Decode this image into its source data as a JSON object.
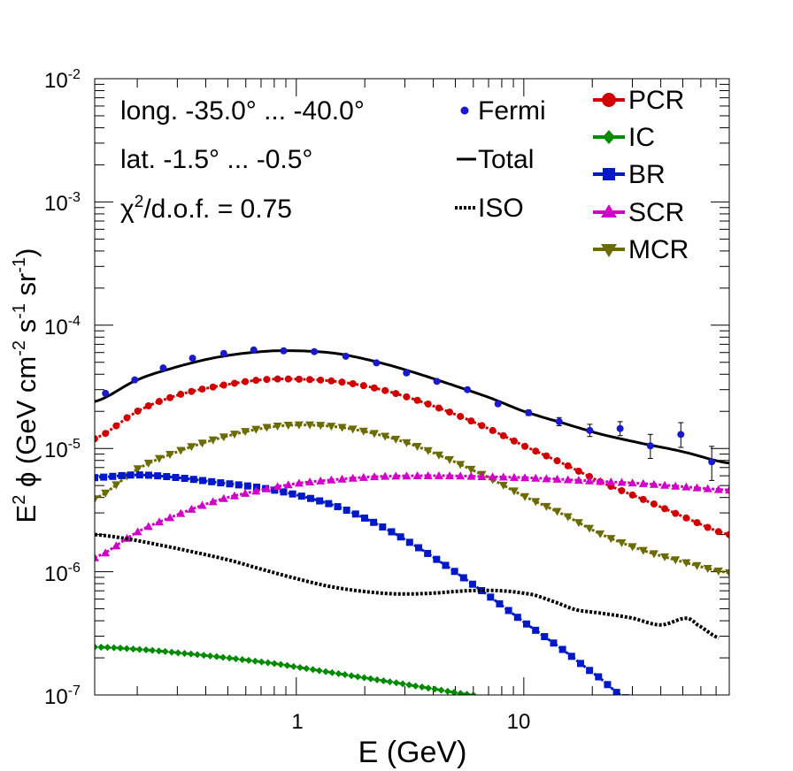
{
  "chart_data": {
    "type": "line",
    "x_scale": "log",
    "y_scale": "log",
    "xlim": [
      0.13,
      80
    ],
    "ylim": [
      1e-07,
      0.01
    ],
    "xlabel": "E (GeV)",
    "ylabel": "E² ϕ (GeV cm⁻² s⁻¹ sr⁻¹)",
    "ylabel_parts": {
      "base": "E",
      "sq": "2",
      "phi": " ϕ (GeV cm",
      "m2": "-2",
      "s": " s",
      "m1a": "-1",
      "sr": " sr",
      "m1b": "-1",
      "close": ")"
    },
    "x_tick_labels": [
      {
        "value": 1,
        "label": "1"
      },
      {
        "value": 10,
        "label": "10"
      }
    ],
    "y_tick_labels": [
      {
        "value": 1e-07,
        "base": "10",
        "exp": "-7"
      },
      {
        "value": 1e-06,
        "base": "10",
        "exp": "-6"
      },
      {
        "value": 1e-05,
        "base": "10",
        "exp": "-5"
      },
      {
        "value": 0.0001,
        "base": "10",
        "exp": "-4"
      },
      {
        "value": 0.001,
        "base": "10",
        "exp": "-3"
      },
      {
        "value": 0.01,
        "base": "10",
        "exp": "-2"
      }
    ],
    "annotations": {
      "longitude": "long. -35.0° ... -40.0°",
      "latitude": "lat. -1.5° ... -0.5°",
      "chi_prefix": "χ",
      "chi_exp": "2",
      "chi_suffix": "/d.o.f. = 0.75"
    },
    "legend_left": [
      {
        "name": "Fermi",
        "style": "points"
      },
      {
        "name": "Total",
        "style": "solid"
      },
      {
        "name": "ISO",
        "style": "dotted"
      }
    ],
    "legend_right": [
      {
        "name": "PCR",
        "color": "#d00000",
        "marker": "circle"
      },
      {
        "name": "IC",
        "color": "#008a00",
        "marker": "diamond"
      },
      {
        "name": "BR",
        "color": "#0018c8",
        "marker": "square"
      },
      {
        "name": "SCR",
        "color": "#d000c8",
        "marker": "triangle-up"
      },
      {
        "name": "MCR",
        "color": "#6b6b00",
        "marker": "triangle-down"
      }
    ],
    "fermi_points": {
      "color": "#1a1acc",
      "x": [
        0.145,
        0.195,
        0.26,
        0.35,
        0.48,
        0.65,
        0.88,
        1.2,
        1.65,
        2.25,
        3.05,
        4.15,
        5.65,
        7.7,
        10.5,
        14.3,
        19.5,
        26.5,
        36,
        49,
        67
      ],
      "y": [
        2.8e-05,
        3.6e-05,
        4.5e-05,
        5.4e-05,
        5.9e-05,
        6.3e-05,
        6.2e-05,
        6.1e-05,
        5.6e-05,
        4.95e-05,
        4.1e-05,
        3.5e-05,
        3e-05,
        2.3e-05,
        1.95e-05,
        1.65e-05,
        1.4e-05,
        1.45e-05,
        1.05e-05,
        1.3e-05,
        7.8e-06
      ],
      "err_lo": [
        0,
        0,
        0,
        0,
        0,
        0,
        0,
        0,
        0,
        0,
        0,
        0,
        0,
        0,
        1e-06,
        1.2e-06,
        1.5e-06,
        1.8e-06,
        2.2e-06,
        2.8e-06,
        2.3e-06
      ],
      "err_hi": [
        0,
        0,
        0,
        0,
        0,
        0,
        0,
        0,
        0,
        0,
        0,
        0,
        0,
        0,
        1e-06,
        1.3e-06,
        1.7e-06,
        2e-06,
        2.5e-06,
        3.2e-06,
        2.6e-06
      ]
    },
    "series": [
      {
        "name": "Total",
        "color": "#000000",
        "style": "solid",
        "x": [
          0.13,
          0.2,
          0.3,
          0.45,
          0.7,
          1.0,
          1.5,
          2.2,
          3.2,
          4.8,
          7.0,
          10,
          15,
          22,
          33,
          50,
          80
        ],
        "y": [
          2.4e-05,
          3.6e-05,
          4.6e-05,
          5.5e-05,
          6.1e-05,
          6.2e-05,
          5.9e-05,
          5.1e-05,
          4.2e-05,
          3.3e-05,
          2.6e-05,
          2e-05,
          1.6e-05,
          1.3e-05,
          1.1e-05,
          9.4e-06,
          7.6e-06
        ]
      },
      {
        "name": "PCR",
        "color": "#d00000",
        "style": "markers",
        "marker": "circle",
        "x": [
          0.13,
          0.2,
          0.3,
          0.45,
          0.7,
          1.0,
          1.5,
          2.2,
          3.2,
          4.8,
          7.0,
          10,
          15,
          22,
          33,
          50,
          80
        ],
        "y": [
          1.2e-05,
          2e-05,
          2.7e-05,
          3.2e-05,
          3.6e-05,
          3.65e-05,
          3.5e-05,
          3.1e-05,
          2.55e-05,
          1.95e-05,
          1.45e-05,
          1.05e-05,
          7.5e-06,
          5.3e-06,
          3.9e-06,
          2.8e-06,
          2e-06
        ]
      },
      {
        "name": "MCR",
        "color": "#6b6b00",
        "style": "markers",
        "marker": "triangle-down",
        "x": [
          0.13,
          0.2,
          0.3,
          0.45,
          0.7,
          1.0,
          1.5,
          2.2,
          3.2,
          4.8,
          7.0,
          10,
          15,
          22,
          33,
          50,
          80
        ],
        "y": [
          3.9e-06,
          6.8e-06,
          9.4e-06,
          1.2e-05,
          1.45e-05,
          1.55e-05,
          1.5e-05,
          1.32e-05,
          1.08e-05,
          8e-06,
          5.8e-06,
          4.1e-06,
          2.9e-06,
          2e-06,
          1.5e-06,
          1.2e-06,
          9.8e-07
        ]
      },
      {
        "name": "BR",
        "color": "#0018c8",
        "style": "markers",
        "marker": "square",
        "x": [
          0.13,
          0.2,
          0.3,
          0.45,
          0.7,
          1.0,
          1.5,
          2.2,
          3.2,
          4.8,
          7.0,
          10,
          15,
          22,
          28
        ],
        "y": [
          5.8e-06,
          6.1e-06,
          5.8e-06,
          5.3e-06,
          4.8e-06,
          4.2e-06,
          3.4e-06,
          2.5e-06,
          1.7e-06,
          1.05e-06,
          6.4e-07,
          3.9e-07,
          2.3e-07,
          1.35e-07,
          9.5e-08
        ]
      },
      {
        "name": "SCR",
        "color": "#d000c8",
        "style": "markers",
        "marker": "triangle-up",
        "x": [
          0.13,
          0.2,
          0.3,
          0.45,
          0.7,
          1.0,
          1.5,
          2.2,
          3.2,
          4.8,
          7.0,
          10,
          15,
          22,
          33,
          50,
          80
        ],
        "y": [
          1.3e-06,
          2.1e-06,
          2.9e-06,
          3.8e-06,
          4.6e-06,
          5.2e-06,
          5.6e-06,
          5.9e-06,
          6e-06,
          6e-06,
          5.9e-06,
          5.8e-06,
          5.6e-06,
          5.4e-06,
          5.2e-06,
          4.9e-06,
          4.6e-06
        ]
      },
      {
        "name": "ISO",
        "color": "#000000",
        "style": "dotted",
        "x": [
          0.13,
          0.18,
          0.25,
          0.35,
          0.5,
          0.7,
          1.0,
          1.4,
          2.0,
          2.8,
          4.0,
          5.6,
          8.0,
          11,
          14,
          17,
          22,
          30,
          40,
          52,
          58,
          72
        ],
        "y": [
          2e-06,
          1.85e-06,
          1.65e-06,
          1.45e-06,
          1.25e-06,
          1.05e-06,
          8.8e-07,
          7.6e-07,
          6.9e-07,
          6.6e-07,
          6.7e-07,
          7e-07,
          7e-07,
          6.5e-07,
          5.6e-07,
          4.9e-07,
          4.6e-07,
          4.2e-07,
          3.7e-07,
          4.2e-07,
          3.7e-07,
          2.9e-07
        ]
      },
      {
        "name": "IC",
        "color": "#008a00",
        "style": "markers",
        "marker": "diamond",
        "x": [
          0.13,
          0.2,
          0.3,
          0.5,
          0.8,
          1.2,
          1.8,
          2.8,
          4.0,
          6.0
        ],
        "y": [
          2.45e-07,
          2.35e-07,
          2.2e-07,
          2e-07,
          1.8e-07,
          1.6e-07,
          1.42e-07,
          1.25e-07,
          1.12e-07,
          1e-07
        ]
      }
    ]
  }
}
